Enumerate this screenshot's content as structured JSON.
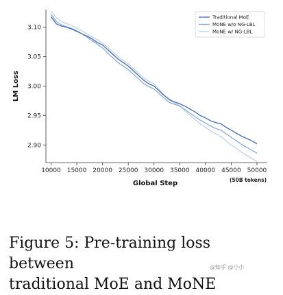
{
  "chart_data": {
    "type": "line",
    "xlabel": "Global Step",
    "ylabel": "LM Loss",
    "x_note": "(50B tokens)",
    "xlim": [
      9000,
      52000
    ],
    "ylim": [
      2.87,
      3.13
    ],
    "xticks": [
      10000,
      15000,
      20000,
      25000,
      30000,
      35000,
      40000,
      45000,
      50000
    ],
    "yticks": [
      2.9,
      2.95,
      3.0,
      3.05,
      3.1
    ],
    "grid": false,
    "legend_position": "top-right",
    "series": [
      {
        "name": "Traditional MoE",
        "color": "#4a72b8",
        "x": [
          10000,
          10500,
          11000,
          12000,
          13000,
          14000,
          15000,
          16000,
          17000,
          18000,
          19000,
          20000,
          21000,
          22000,
          23000,
          24000,
          25000,
          26000,
          27000,
          28000,
          29000,
          30000,
          31000,
          32000,
          33000,
          34000,
          35000,
          36000,
          37000,
          38000,
          39000,
          40000,
          41000,
          42000,
          43000,
          44000,
          45000,
          46000,
          47000,
          48000,
          49000,
          50000
        ],
        "y": [
          3.118,
          3.112,
          3.106,
          3.102,
          3.1,
          3.097,
          3.093,
          3.089,
          3.085,
          3.08,
          3.074,
          3.07,
          3.062,
          3.054,
          3.046,
          3.04,
          3.034,
          3.026,
          3.018,
          3.01,
          3.004,
          3.0,
          2.992,
          2.984,
          2.977,
          2.973,
          2.97,
          2.966,
          2.961,
          2.956,
          2.95,
          2.946,
          2.941,
          2.938,
          2.936,
          2.93,
          2.925,
          2.92,
          2.915,
          2.911,
          2.907,
          2.902
        ]
      },
      {
        "name": "MoNE w/o NG-LBL",
        "color": "#7fa6d6",
        "x": [
          10000,
          10500,
          11000,
          12000,
          13000,
          14000,
          15000,
          16000,
          17000,
          18000,
          19000,
          20000,
          21000,
          22000,
          23000,
          24000,
          25000,
          26000,
          27000,
          28000,
          29000,
          30000,
          31000,
          32000,
          33000,
          34000,
          35000,
          36000,
          37000,
          38000,
          39000,
          40000,
          41000,
          42000,
          43000,
          44000,
          45000,
          46000,
          47000,
          48000,
          49000,
          50000
        ],
        "y": [
          3.122,
          3.116,
          3.11,
          3.104,
          3.101,
          3.098,
          3.094,
          3.089,
          3.083,
          3.077,
          3.071,
          3.065,
          3.056,
          3.048,
          3.04,
          3.034,
          3.028,
          3.02,
          3.012,
          3.004,
          2.999,
          2.995,
          2.987,
          2.979,
          2.972,
          2.969,
          2.966,
          2.96,
          2.954,
          2.948,
          2.942,
          2.937,
          2.932,
          2.928,
          2.925,
          2.919,
          2.913,
          2.907,
          2.901,
          2.896,
          2.891,
          2.886
        ]
      },
      {
        "name": "MoNE w/ NG-LBL",
        "color": "#b7d0ec",
        "x": [
          10000,
          10500,
          11000,
          12000,
          13000,
          14000,
          15000,
          16000,
          17000,
          18000,
          19000,
          20000,
          21000,
          22000,
          23000,
          24000,
          25000,
          26000,
          27000,
          28000,
          29000,
          30000,
          31000,
          32000,
          33000,
          34000,
          35000,
          36000,
          37000,
          38000,
          39000,
          40000,
          41000,
          42000,
          43000,
          44000,
          45000,
          46000,
          47000,
          48000,
          49000,
          50000
        ],
        "y": [
          3.127,
          3.122,
          3.116,
          3.11,
          3.106,
          3.103,
          3.099,
          3.094,
          3.089,
          3.083,
          3.079,
          3.073,
          3.066,
          3.058,
          3.05,
          3.044,
          3.038,
          3.03,
          3.022,
          3.014,
          3.008,
          3.004,
          2.994,
          2.984,
          2.976,
          2.971,
          2.967,
          2.958,
          2.95,
          2.943,
          2.936,
          2.93,
          2.924,
          2.919,
          2.914,
          2.907,
          2.9,
          2.894,
          2.888,
          2.882,
          2.877,
          2.872
        ]
      }
    ]
  },
  "caption": {
    "line1": "Figure 5: Pre-training loss between",
    "line2": "traditional MoE and MoNE"
  },
  "watermark": "@知乎 @小小"
}
